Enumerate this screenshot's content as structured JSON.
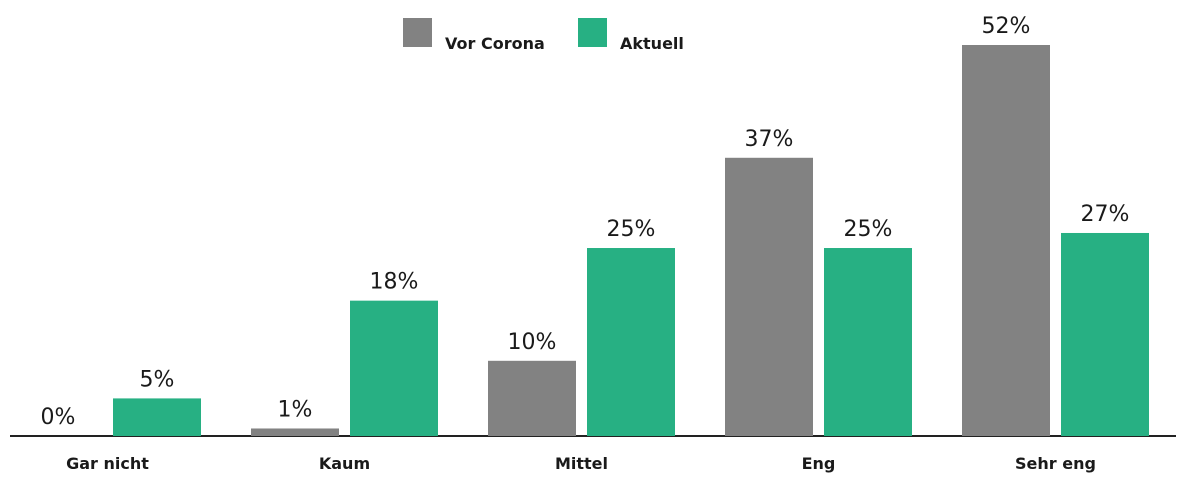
{
  "chart_data": {
    "type": "bar",
    "categories": [
      "Gar nicht",
      "Kaum",
      "Mittel",
      "Eng",
      "Sehr eng"
    ],
    "series": [
      {
        "name": "Vor Corona",
        "color": "#828282",
        "values": [
          0,
          1,
          10,
          37,
          52
        ],
        "value_labels": [
          "0%",
          "1%",
          "10%",
          "37%",
          "52%"
        ]
      },
      {
        "name": "Aktuell",
        "color": "#27b083",
        "values": [
          5,
          18,
          25,
          25,
          27
        ],
        "value_labels": [
          "5%",
          "18%",
          "25%",
          "25%",
          "27%"
        ]
      }
    ]
  }
}
